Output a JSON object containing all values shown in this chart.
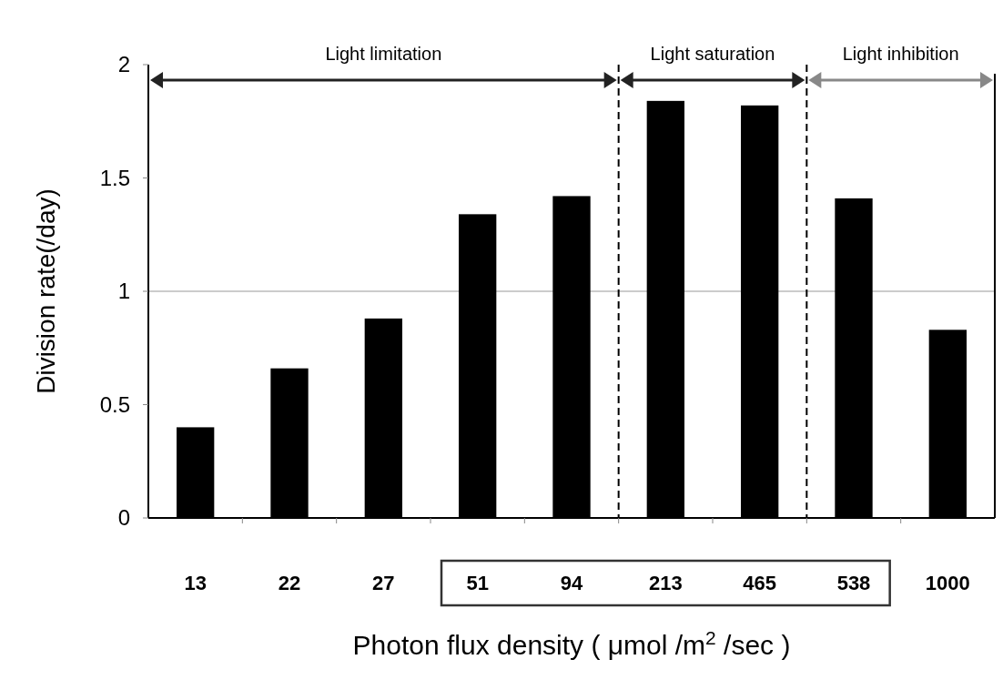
{
  "chart_data": {
    "type": "bar",
    "categories": [
      "13",
      "22",
      "27",
      "51",
      "94",
      "213",
      "465",
      "538",
      "1000"
    ],
    "values": [
      0.4,
      0.66,
      0.88,
      1.34,
      1.42,
      1.84,
      1.82,
      1.41,
      0.83
    ],
    "color": "#000000",
    "xlabel": "Photon flux density ( μmol /m$^{2}$ /sec )",
    "ylabel": "Division rate(/day)",
    "ylim": [
      0,
      2
    ],
    "yticks": [
      0,
      0.5,
      1,
      1.5,
      2
    ],
    "ref_lines": [
      {
        "axis": "y",
        "value": 1,
        "color": "#999999",
        "line_style": "solid"
      }
    ],
    "annotations": [
      "Light limitation",
      "Light saturation",
      "Light inhibition"
    ]
  }
}
